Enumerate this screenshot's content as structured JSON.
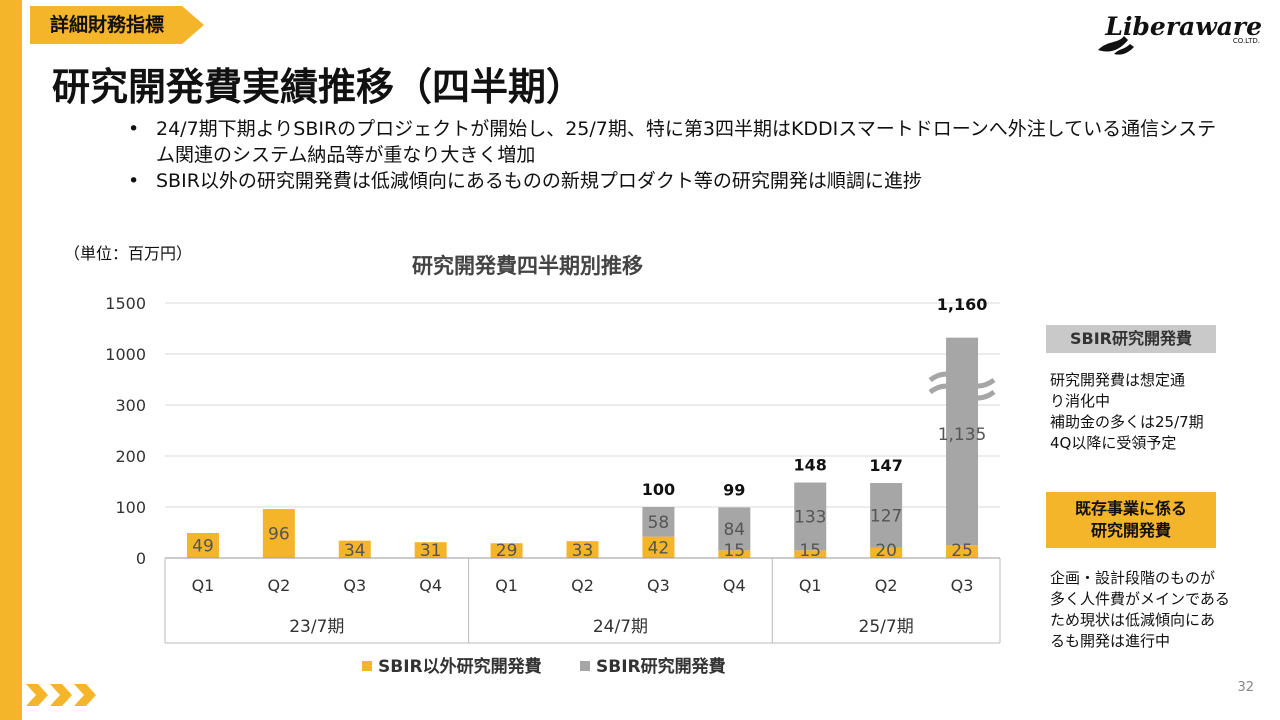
{
  "header": {
    "tag": "詳細財務指標",
    "title": "研究開発費実績推移（四半期）",
    "logo": {
      "text": "Liberaware",
      "co": "CO.LTD."
    }
  },
  "bullets": [
    "24/7期下期よりSBIRのプロジェクトが開始し、25/7期、特に第3四半期はKDDIスマートドローンへ外注している通信システム関連のシステム納品等が重なり大きく増加",
    "SBIR以外の研究開発費は低減傾向にあるものの新規プロダクト等の研究開発は順調に進捗"
  ],
  "unit_label": "（単位：百万円）",
  "chart_data": {
    "type": "bar",
    "stacked": true,
    "title": "研究開発費四半期別推移",
    "categories": [
      "Q1",
      "Q2",
      "Q3",
      "Q4",
      "Q1",
      "Q2",
      "Q3",
      "Q4",
      "Q1",
      "Q2",
      "Q3"
    ],
    "groups": [
      {
        "label": "23/7期",
        "count": 4
      },
      {
        "label": "24/7期",
        "count": 4
      },
      {
        "label": "25/7期",
        "count": 3
      }
    ],
    "series": [
      {
        "name": "SBIR以外研究開発費",
        "color": "#F5B52A",
        "values": [
          49,
          96,
          34,
          31,
          29,
          33,
          42,
          15,
          15,
          20,
          25
        ]
      },
      {
        "name": "SBIR研究開発費",
        "color": "#A6A6A6",
        "values": [
          null,
          null,
          null,
          null,
          null,
          null,
          58,
          84,
          133,
          127,
          1135
        ]
      }
    ],
    "totals": [
      null,
      null,
      null,
      null,
      null,
      null,
      "100",
      "99",
      "148",
      "147",
      "1,160"
    ],
    "segment_labels": {
      "SBIR": [
        null,
        null,
        null,
        null,
        null,
        null,
        "58",
        "84",
        "133",
        "127",
        "1,135"
      ]
    },
    "yticks": [
      "0",
      "100",
      "200",
      "300",
      "1000",
      "1500"
    ],
    "axis_break": true,
    "grid": true,
    "legend_position": "bottom"
  },
  "side": {
    "sbir_title": "SBIR研究開発費",
    "sbir_lines": [
      "研究開発費は想定通",
      "り消化中",
      "補助金の多くは25/7期",
      "4Q以降に受領予定"
    ],
    "existing_title_lines": [
      "既存事業に係る",
      "研究開発費"
    ],
    "existing_lines": [
      "企画・設計段階のものが",
      "多く人件費がメインである",
      "ため現状は低減傾向にあ",
      "るも開発は進行中"
    ]
  },
  "page_number": "32",
  "colors": {
    "accent": "#F5B52A",
    "sbir": "#A6A6A6",
    "grid": "#D9D9D9"
  }
}
